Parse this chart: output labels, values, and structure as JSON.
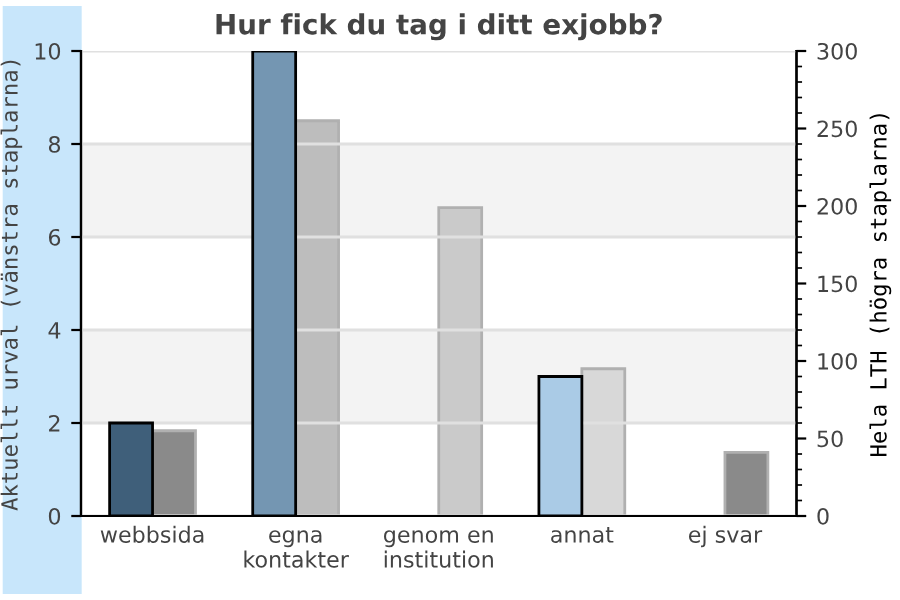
{
  "chart_data": {
    "type": "bar",
    "title": "Hur fick du tag i ditt exjobb?",
    "ylabel": "Aktuellt urval (vänstra staplarna)",
    "y2label": "Hela LTH (högra staplarna)",
    "categories": [
      "webbsida",
      "egna\nkontakter",
      "genom en\ninstitution",
      "annat",
      "ej svar"
    ],
    "series": [
      {
        "colors": [
          "#3f5f7a",
          "#7496b2",
          null,
          "#aacbe6",
          null
        ],
        "values": [
          2,
          10,
          null,
          3,
          null
        ]
      },
      {
        "axis": "y2",
        "colors": [
          "#8a8a8a",
          "#bdbdbd",
          "#cacaca",
          "#d8d8d8",
          "#8a8a8a"
        ],
        "values": [
          55,
          255,
          199,
          95,
          41
        ]
      }
    ],
    "ylim": [
      0,
      10
    ],
    "yticks": [
      0,
      2,
      4,
      6,
      8,
      10
    ],
    "y2lim": [
      0,
      300
    ],
    "y2ticks": [
      0,
      50,
      100,
      150,
      200,
      250,
      300
    ],
    "grid": "y"
  }
}
